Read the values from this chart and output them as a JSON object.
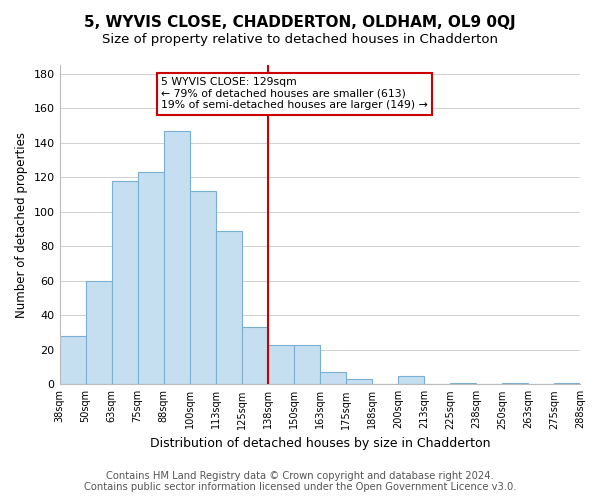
{
  "title": "5, WYVIS CLOSE, CHADDERTON, OLDHAM, OL9 0QJ",
  "subtitle": "Size of property relative to detached houses in Chadderton",
  "xlabel": "Distribution of detached houses by size in Chadderton",
  "ylabel": "Number of detached properties",
  "tick_labels": [
    "38sqm",
    "50sqm",
    "63sqm",
    "75sqm",
    "88sqm",
    "100sqm",
    "113sqm",
    "125sqm",
    "138sqm",
    "150sqm",
    "163sqm",
    "175sqm",
    "188sqm",
    "200sqm",
    "213sqm",
    "225sqm",
    "238sqm",
    "250sqm",
    "263sqm",
    "275sqm",
    "288sqm"
  ],
  "bar_heights": [
    28,
    60,
    118,
    123,
    147,
    112,
    89,
    33,
    23,
    23,
    7,
    3,
    0,
    5,
    0,
    1,
    0,
    1,
    0,
    1
  ],
  "bar_color": "#c6dff0",
  "bar_edge_color": "#7aafd4",
  "vline_pos": 8,
  "vline_color": "#cc0000",
  "annotation_line1": "5 WYVIS CLOSE: 129sqm",
  "annotation_line2": "← 79% of detached houses are smaller (613)",
  "annotation_line3": "19% of semi-detached houses are larger (149) →",
  "annotation_box_color": "#ffffff",
  "annotation_box_edge": "#cc0000",
  "ylim": [
    0,
    185
  ],
  "yticks": [
    0,
    20,
    40,
    60,
    80,
    100,
    120,
    140,
    160,
    180
  ],
  "footer_line1": "Contains HM Land Registry data © Crown copyright and database right 2024.",
  "footer_line2": "Contains public sector information licensed under the Open Government Licence v3.0.",
  "bg_color": "#ffffff",
  "grid_color": "#d0d0d0",
  "title_fontsize": 11,
  "subtitle_fontsize": 9.5,
  "xlabel_fontsize": 9,
  "ylabel_fontsize": 8.5,
  "footer_fontsize": 7.2
}
